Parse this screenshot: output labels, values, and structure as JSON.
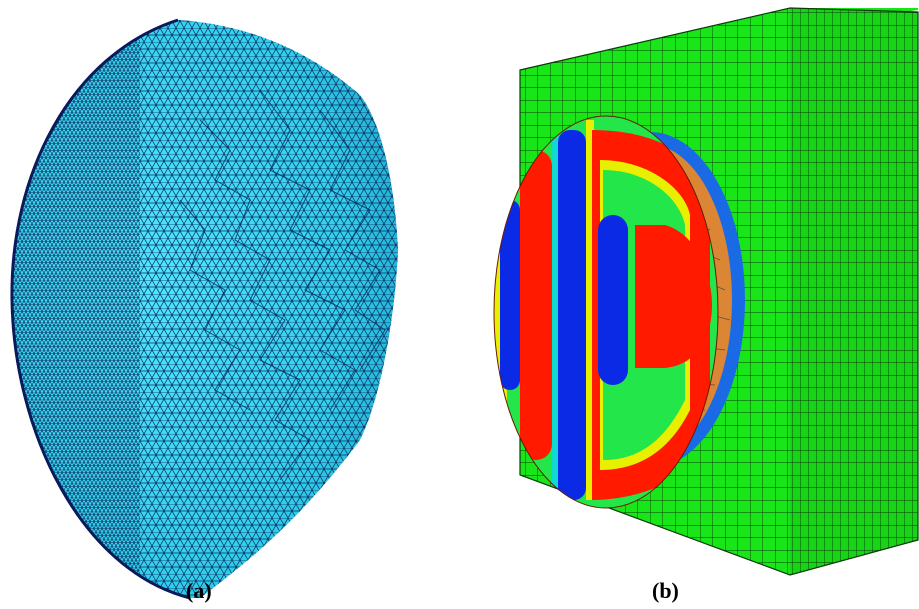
{
  "panels": [
    {
      "id": "a",
      "caption": "(a)",
      "content": "tetrahedral-mesh-hemisphere",
      "mesh_color": "#3fd9f2",
      "edge_color": "#0b2a5a"
    },
    {
      "id": "b",
      "caption": "(b)",
      "content": "field-contour-on-hemisphere-in-hex-mesh-block",
      "block_color": "#19e619",
      "grid_color": "#0a3a0a"
    }
  ],
  "colors": {
    "contour_red": "#ff1a00",
    "contour_blue": "#0a2ae6",
    "contour_green": "#22e64a",
    "contour_cyan": "#10d9d0",
    "contour_yellow": "#e8f000"
  }
}
